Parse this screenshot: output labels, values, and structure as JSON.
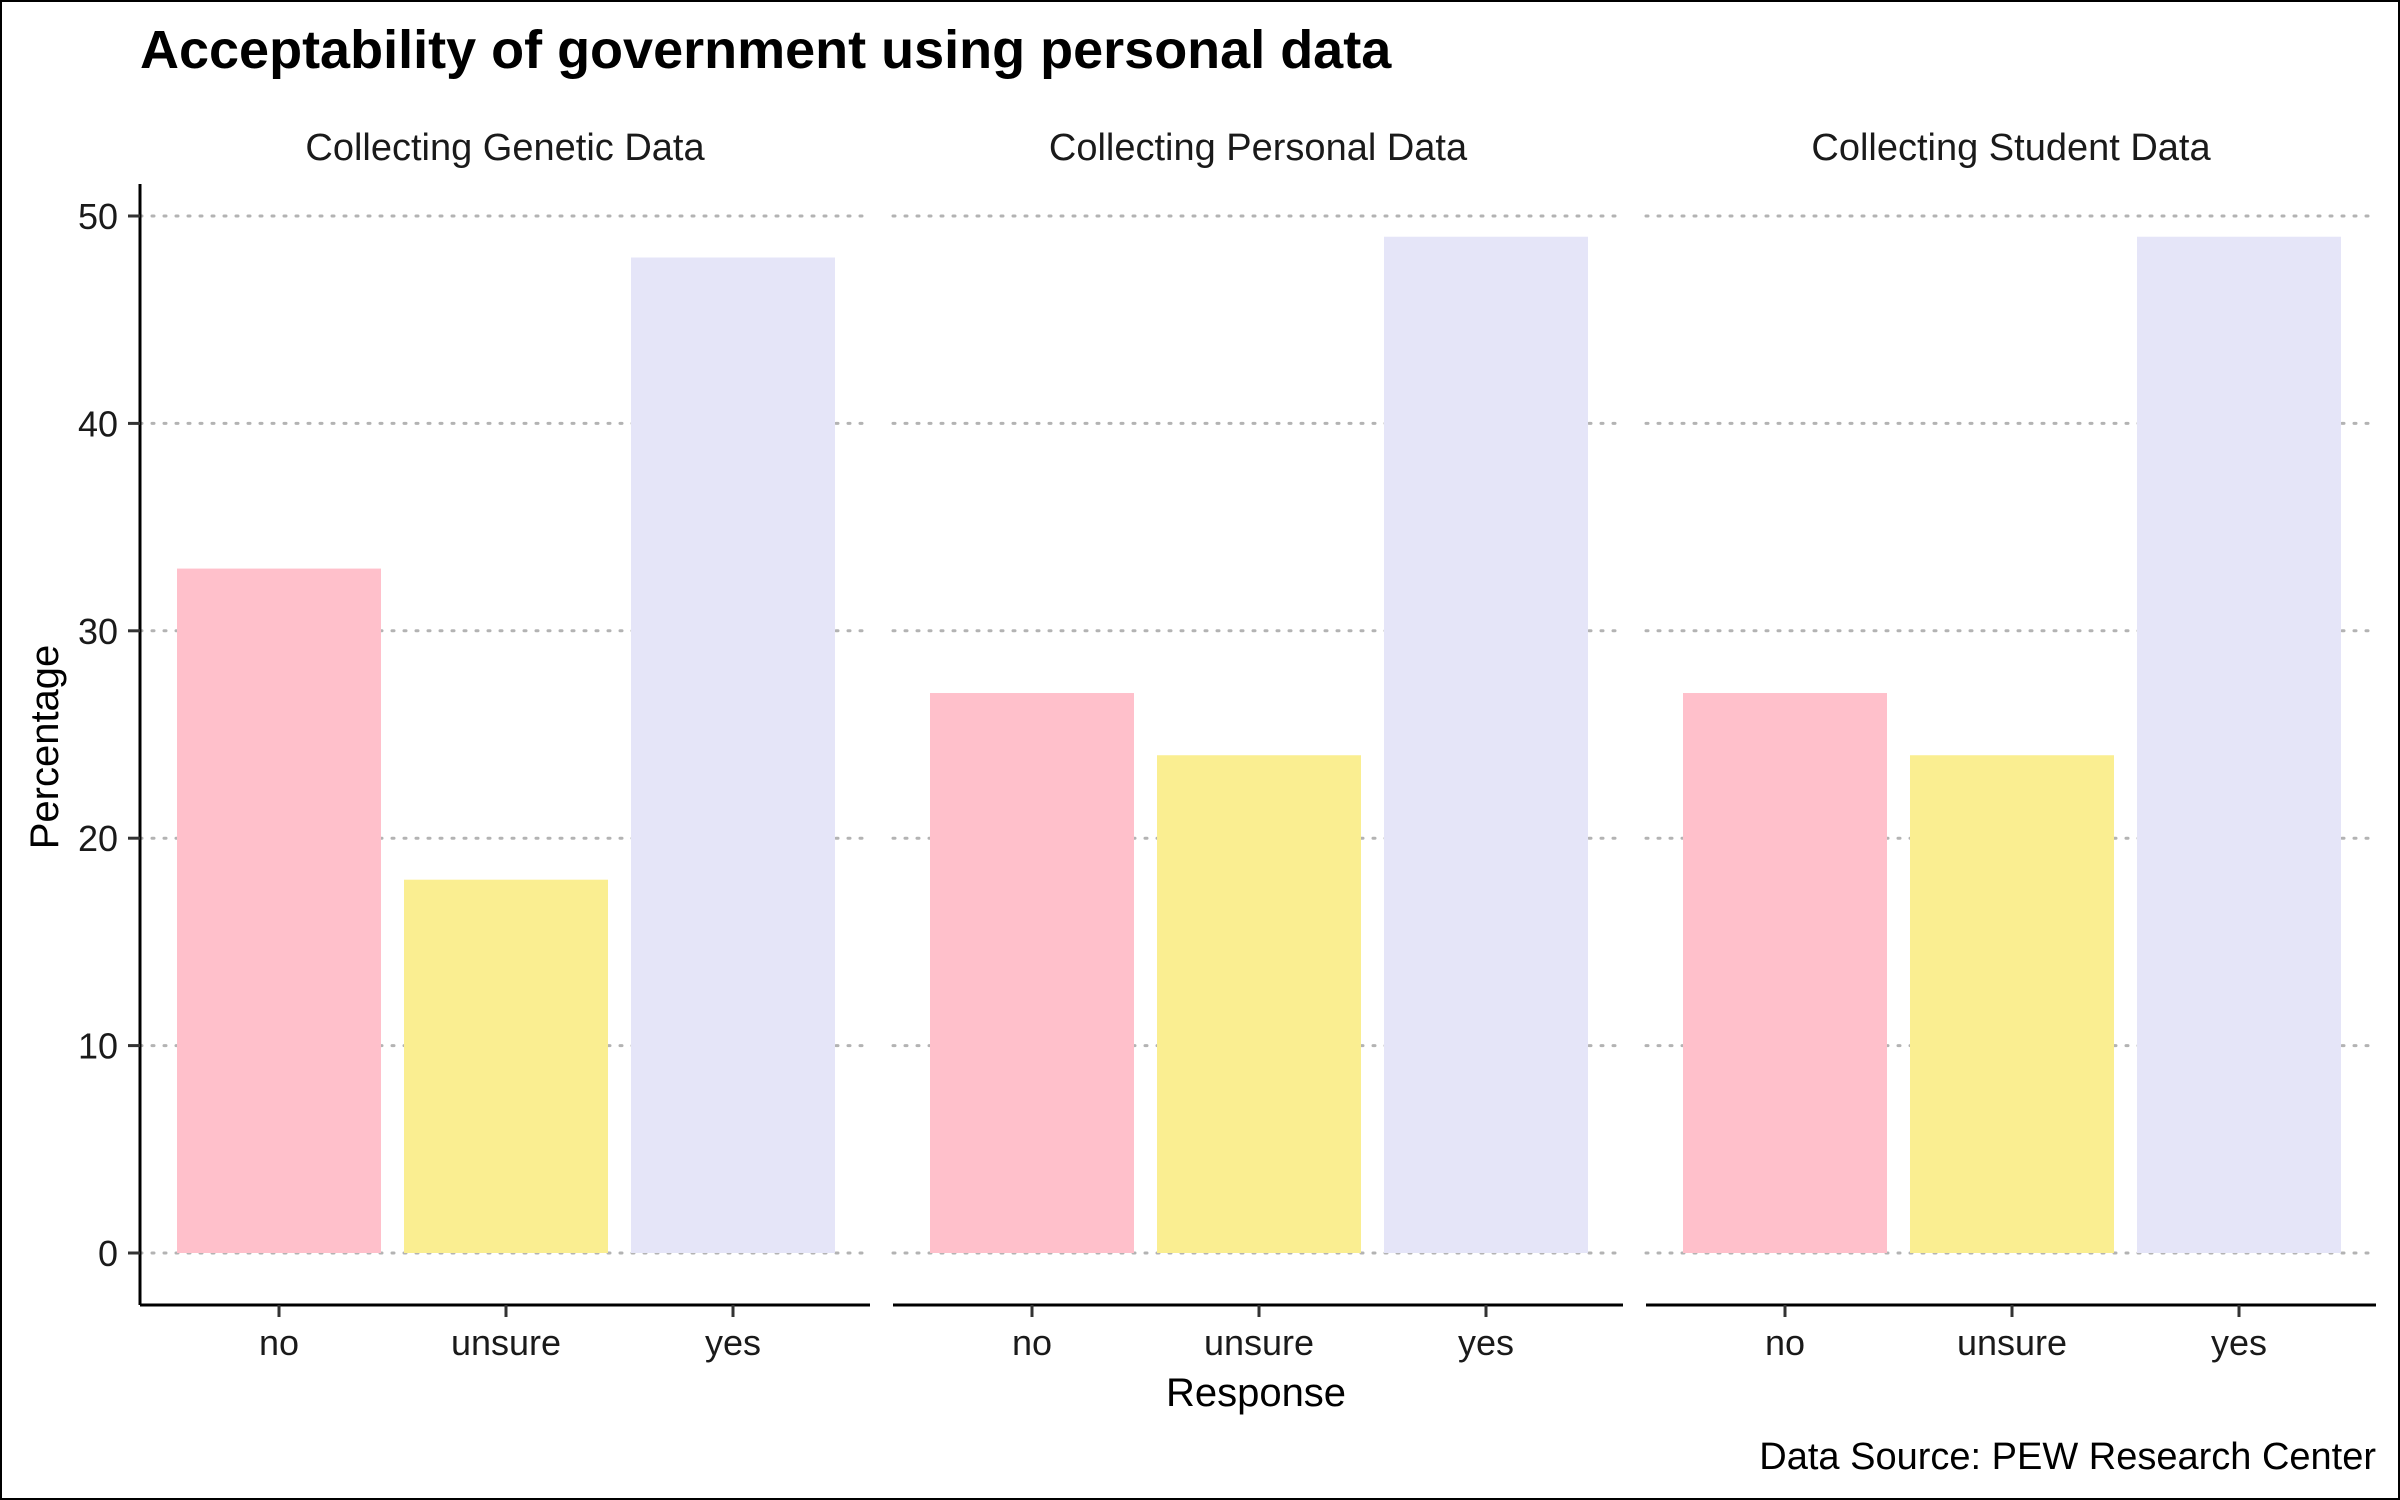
{
  "chart_data": {
    "type": "bar",
    "title": "Acceptability of government using personal data",
    "xlabel": "Response",
    "ylabel": "Percentage",
    "caption": "Data Source: PEW Research Center",
    "ylim": [
      0,
      50
    ],
    "y_ticks": [
      "0",
      "10",
      "20",
      "30",
      "40",
      "50"
    ],
    "grid": "horizontal dotted",
    "legend": "none",
    "categories": [
      "no",
      "unsure",
      "yes"
    ],
    "category_colors": {
      "no": "#ffc0cb",
      "unsure": "#faee91",
      "yes": "#e5e5f8"
    },
    "facets": [
      {
        "name": "Collecting Genetic Data",
        "values": [
          33,
          18,
          48
        ]
      },
      {
        "name": "Collecting Personal Data",
        "values": [
          27,
          24,
          49
        ]
      },
      {
        "name": "Collecting Student Data",
        "values": [
          27,
          24,
          49
        ]
      }
    ]
  }
}
